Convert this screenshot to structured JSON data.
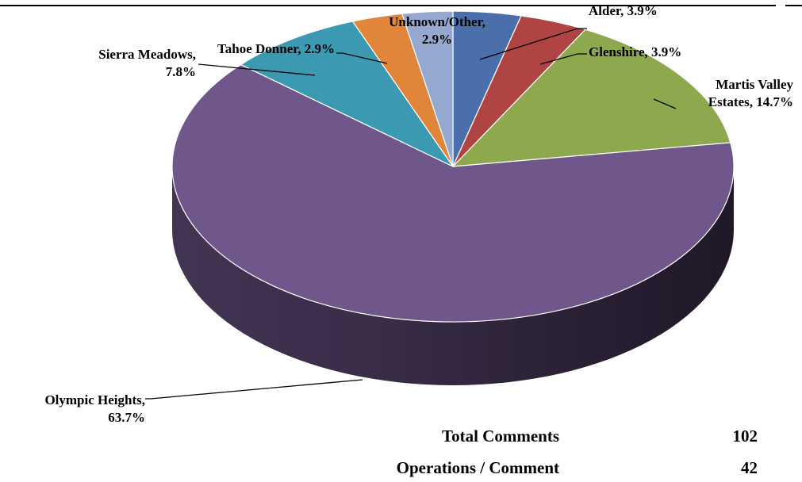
{
  "chart_data": {
    "type": "pie",
    "title": "",
    "slices": [
      {
        "label_lines": [
          "Alder, 3.9%"
        ],
        "value": 3.9,
        "color": "#4a6fab"
      },
      {
        "label_lines": [
          "Glenshire, 3.9%"
        ],
        "value": 3.9,
        "color": "#b04442"
      },
      {
        "label_lines": [
          "Martis Valley",
          "Estates, 14.7%"
        ],
        "value": 14.7,
        "color": "#8ea84e"
      },
      {
        "label_lines": [
          "Olympic Heights,",
          "63.7%"
        ],
        "value": 63.7,
        "color": "#6f578b"
      },
      {
        "label_lines": [
          "Sierra Meadows,",
          "7.8%"
        ],
        "value": 7.8,
        "color": "#3b9ab2"
      },
      {
        "label_lines": [
          "Tahoe Donner, 2.9%"
        ],
        "value": 2.9,
        "color": "#e0853a"
      },
      {
        "label_lines": [
          "Unknown/Other,",
          "2.9%"
        ],
        "value": 2.9,
        "color": "#95a8d0"
      }
    ]
  },
  "stats": {
    "total_label": "Total Comments",
    "total_value": "102",
    "ops_label": "Operations / Comment",
    "ops_value": "42"
  }
}
